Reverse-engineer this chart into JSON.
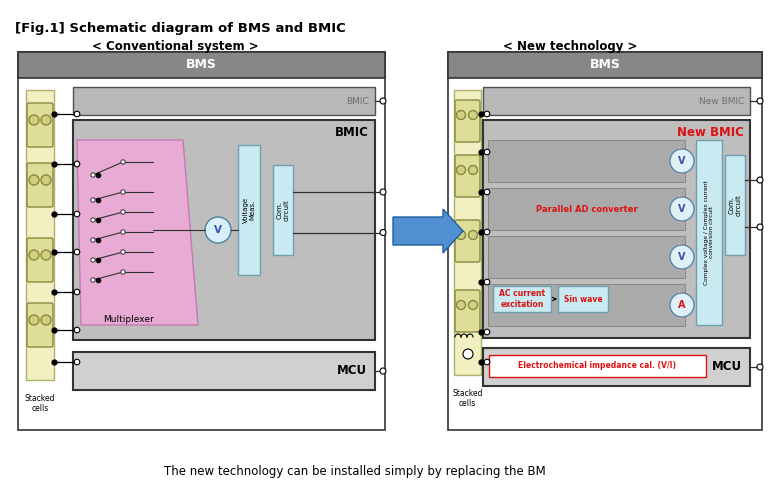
{
  "title": "[Fig.1] Schematic diagram of BMS and BMIC",
  "subtitle_left": "< Conventional system >",
  "subtitle_right": "< New technology >",
  "footer": "The new technology can be installed simply by replacing the BM",
  "bg_color": "#ffffff",
  "gray_header": "#878787",
  "gray_bg": "#c0c0c0",
  "light_gray": "#d4d4d4",
  "pink_color": "#f0b8e0",
  "light_blue": "#c8eaf0",
  "yellow_bg": "#f0f0c0",
  "yellow_cell": "#e8e8a8",
  "arrow_color": "#4a8fd0",
  "red_text": "#dd1111",
  "blue_text": "#3355aa",
  "dark_border": "#333333",
  "white": "#ffffff"
}
